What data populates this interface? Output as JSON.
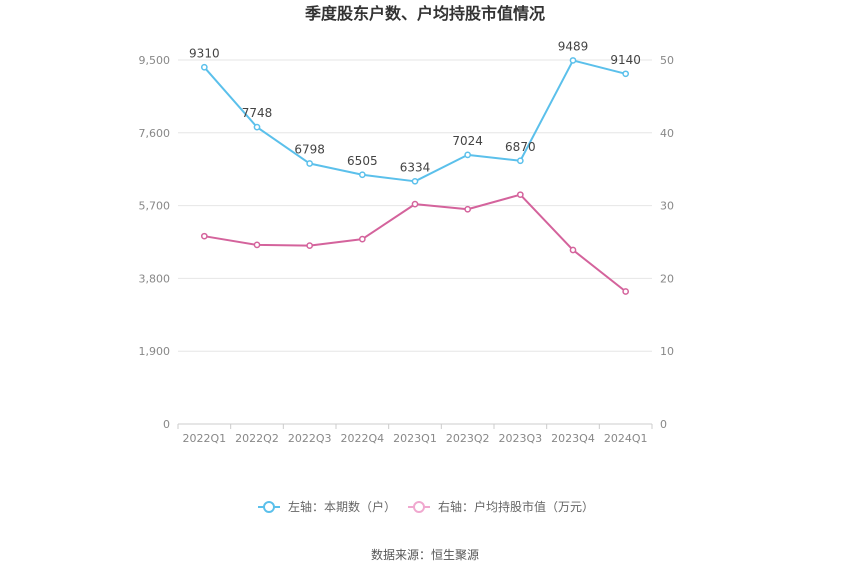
{
  "chart_data": {
    "type": "line",
    "title": "季度股东户数、户均持股市值情况",
    "categories": [
      "2022Q1",
      "2022Q2",
      "2022Q3",
      "2022Q4",
      "2023Q1",
      "2023Q2",
      "2023Q3",
      "2023Q4",
      "2024Q1"
    ],
    "y_left": {
      "ticks": [
        "0",
        "1,900",
        "3,800",
        "5,700",
        "7,600",
        "9,500"
      ],
      "range": [
        0,
        9500
      ]
    },
    "y_right": {
      "ticks": [
        "0",
        "10",
        "20",
        "30",
        "40",
        "50"
      ],
      "range": [
        0,
        50
      ]
    },
    "series": [
      {
        "name": "左轴：本期数（户）",
        "axis": "left",
        "color": "#5bc0eb",
        "values": [
          9310,
          7748,
          6798,
          6505,
          6334,
          7024,
          6870,
          9489,
          9140
        ],
        "labels": [
          "9310",
          "7748",
          "6798",
          "6505",
          "6334",
          "7024",
          "6870",
          "9489",
          "9140"
        ]
      },
      {
        "name": "右轴：户均持股市值（万元）",
        "axis": "right",
        "color": "#d4639c",
        "values": [
          25.8,
          24.6,
          24.5,
          25.4,
          30.2,
          29.5,
          31.5,
          23.9,
          18.2
        ]
      }
    ],
    "legend_position": "bottom",
    "grid": true,
    "legend_marker_colors": [
      "#5bc0eb",
      "#f0a8cf"
    ]
  },
  "source": "数据来源：恒生聚源"
}
